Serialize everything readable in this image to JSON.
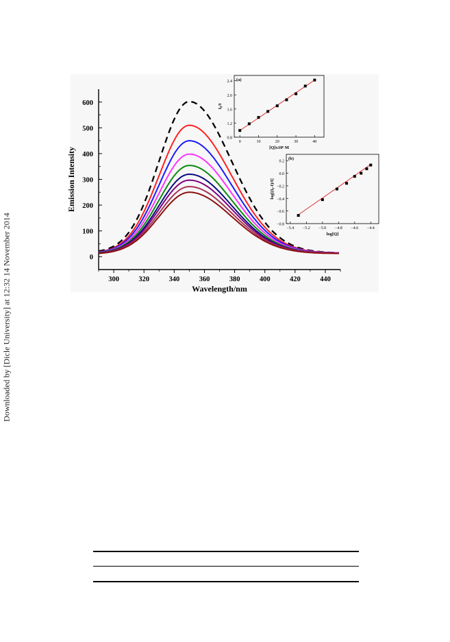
{
  "watermark": "Downloaded by [Dicle University] at 12:32 14 November 2014",
  "chart_data": [
    {
      "id": "main",
      "type": "line",
      "xlabel": "Wavelength/nm",
      "ylabel": "Emission Intensity",
      "xlim": [
        290,
        450
      ],
      "ylim": [
        -50,
        650
      ],
      "xticks": [
        300,
        320,
        340,
        360,
        380,
        400,
        420,
        440
      ],
      "yticks": [
        0,
        100,
        200,
        300,
        400,
        500,
        600
      ],
      "peak_x": 350,
      "baseline_shift": 5,
      "series": [
        {
          "peak": 602,
          "start": 15,
          "end": 14,
          "color": "#000000",
          "dash": true
        },
        {
          "peak": 510,
          "start": 13,
          "end": 14,
          "color": "#ff2020"
        },
        {
          "peak": 450,
          "start": 13,
          "end": 14,
          "color": "#1a1aff"
        },
        {
          "peak": 398,
          "start": 12,
          "end": 14,
          "color": "#ff33ff"
        },
        {
          "peak": 354,
          "start": 12,
          "end": 13,
          "color": "#0a8a0a"
        },
        {
          "peak": 320,
          "start": 11,
          "end": 13,
          "color": "#0a0a80"
        },
        {
          "peak": 297,
          "start": 11,
          "end": 13,
          "color": "#800080"
        },
        {
          "peak": 272,
          "start": 10,
          "end": 13,
          "color": "#aa3355"
        },
        {
          "peak": 250,
          "start": 10,
          "end": 12,
          "color": "#8b1010"
        }
      ]
    },
    {
      "id": "inset-a",
      "type": "scatter",
      "label": "(a)",
      "xlabel": "[Q]x10⁶ M",
      "ylabel": "I₀/I",
      "xlim": [
        -3,
        45
      ],
      "ylim": [
        0.8,
        2.55
      ],
      "xticks": [
        0,
        10,
        20,
        30,
        40
      ],
      "yticks": [
        0.8,
        1.2,
        1.6,
        2.0,
        2.4
      ],
      "x": [
        0,
        5,
        10,
        15,
        20,
        25,
        30,
        35,
        40
      ],
      "y": [
        0.99,
        1.18,
        1.36,
        1.53,
        1.69,
        1.86,
        2.03,
        2.25,
        2.42
      ],
      "fit": [
        [
          0,
          0.99
        ],
        [
          40,
          2.42
        ]
      ],
      "fit_color": "#e03030"
    },
    {
      "id": "inset-b",
      "type": "scatter",
      "label": "(b)",
      "xlabel": "log[Q]",
      "ylabel": "log[(I₀-I)/I]",
      "xlim": [
        -5.45,
        -4.3
      ],
      "ylim": [
        -0.8,
        0.3
      ],
      "xticks": [
        -5.4,
        -5.2,
        -5.0,
        -4.8,
        -4.6,
        -4.4
      ],
      "yticks": [
        -0.8,
        -0.6,
        -0.4,
        -0.2,
        0.0,
        0.2
      ],
      "x": [
        -5.3,
        -5.0,
        -4.82,
        -4.7,
        -4.6,
        -4.52,
        -4.45,
        -4.4
      ],
      "y": [
        -0.67,
        -0.42,
        -0.25,
        -0.16,
        -0.05,
        0.0,
        0.07,
        0.13
      ],
      "fit": [
        [
          -5.3,
          -0.66
        ],
        [
          -4.4,
          0.14
        ]
      ],
      "fit_color": "#e03030"
    }
  ]
}
